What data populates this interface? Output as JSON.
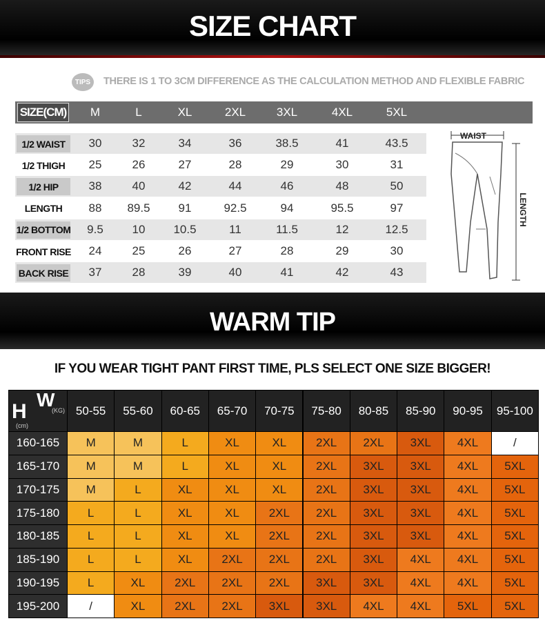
{
  "header": {
    "title": "SIZE CHART"
  },
  "tips": {
    "badge": "TIPS",
    "text": "THERE IS 1 TO 3CM DIFFERENCE AS THE CALCULATION METHOD AND FLEXIBLE FABRIC"
  },
  "size_table": {
    "header": [
      "SIZE(CM)",
      "M",
      "L",
      "XL",
      "2XL",
      "3XL",
      "4XL",
      "5XL"
    ],
    "rows": [
      [
        "1/2 WAIST",
        "30",
        "32",
        "34",
        "36",
        "38.5",
        "41",
        "43.5"
      ],
      [
        "1/2 THIGH",
        "25",
        "26",
        "27",
        "28",
        "29",
        "30",
        "31"
      ],
      [
        "1/2 HIP",
        "38",
        "40",
        "42",
        "44",
        "46",
        "48",
        "50"
      ],
      [
        "LENGTH",
        "88",
        "89.5",
        "91",
        "92.5",
        "94",
        "95.5",
        "97"
      ],
      [
        "1/2 BOTTOM",
        "9.5",
        "10",
        "10.5",
        "11",
        "11.5",
        "12",
        "12.5"
      ],
      [
        "FRONT RISE",
        "24",
        "25",
        "26",
        "27",
        "28",
        "29",
        "30"
      ],
      [
        "BACK RISE",
        "37",
        "28",
        "39",
        "40",
        "41",
        "42",
        "43"
      ]
    ]
  },
  "diagram": {
    "waist": "WAIST",
    "length": "LENGTH"
  },
  "warm_tip": {
    "title": "WARM TIP",
    "note": "IF YOU WEAR TIGHT PANT FIRST TIME, PLS SELECT ONE SIZE BIGGER!"
  },
  "fit_table": {
    "corner": {
      "h": "H",
      "w": "W",
      "kg": "(KG)",
      "cm": "(cm)"
    },
    "weights": [
      "50-55",
      "55-60",
      "60-65",
      "65-70",
      "70-75",
      "75-80",
      "80-85",
      "85-90",
      "90-95",
      "95-100"
    ],
    "rows": [
      {
        "height": "160-165",
        "sizes": [
          "M",
          "M",
          "L",
          "XL",
          "XL",
          "2XL",
          "2XL",
          "3XL",
          "4XL",
          "/"
        ]
      },
      {
        "height": "165-170",
        "sizes": [
          "M",
          "M",
          "L",
          "XL",
          "XL",
          "2XL",
          "3XL",
          "3XL",
          "4XL",
          "5XL"
        ]
      },
      {
        "height": "170-175",
        "sizes": [
          "M",
          "L",
          "XL",
          "XL",
          "XL",
          "2XL",
          "3XL",
          "3XL",
          "4XL",
          "5XL"
        ]
      },
      {
        "height": "175-180",
        "sizes": [
          "L",
          "L",
          "XL",
          "XL",
          "2XL",
          "2XL",
          "3XL",
          "3XL",
          "4XL",
          "5XL"
        ]
      },
      {
        "height": "180-185",
        "sizes": [
          "L",
          "L",
          "XL",
          "XL",
          "2XL",
          "2XL",
          "3XL",
          "3XL",
          "4XL",
          "5XL"
        ]
      },
      {
        "height": "185-190",
        "sizes": [
          "L",
          "L",
          "XL",
          "2XL",
          "2XL",
          "2XL",
          "3XL",
          "4XL",
          "4XL",
          "5XL"
        ]
      },
      {
        "height": "190-195",
        "sizes": [
          "L",
          "XL",
          "2XL",
          "2XL",
          "2XL",
          "3XL",
          "3XL",
          "4XL",
          "4XL",
          "5XL"
        ]
      },
      {
        "height": "195-200",
        "sizes": [
          "/",
          "XL",
          "2XL",
          "2XL",
          "3XL",
          "3XL",
          "4XL",
          "4XL",
          "5XL",
          "5XL"
        ]
      }
    ],
    "colors": {
      "M": "#f6c25a",
      "L": "#f4aa1e",
      "XL": "#f08c12",
      "2XL": "#e87416",
      "3XL": "#d85a0e",
      "4XL": "#ee7a1e",
      "5XL": "#e4640c",
      "/": "#ffffff"
    }
  }
}
